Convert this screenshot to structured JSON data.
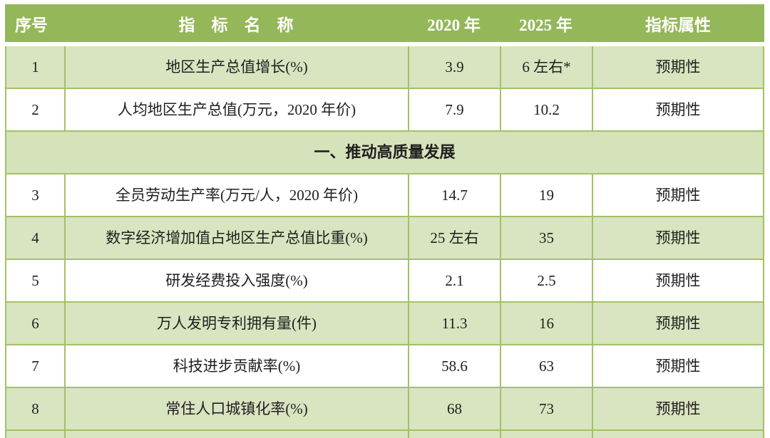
{
  "colors": {
    "header_bg": "#94b75a",
    "row_alt_bg": "#d9e4c0",
    "section_bg": "#d6e2ba",
    "row_bg": "#ffffff",
    "border": "#a3c166",
    "header_text": "#ffffff",
    "body_text": "#1f1f1f"
  },
  "table": {
    "columns": [
      {
        "key": "index",
        "label": "序号"
      },
      {
        "key": "name",
        "label": "指　标　名　称"
      },
      {
        "key": "y2020",
        "label": "2020 年"
      },
      {
        "key": "y2025",
        "label": "2025 年"
      },
      {
        "key": "attribute",
        "label": "指标属性"
      }
    ],
    "rows": [
      {
        "type": "data",
        "index": "1",
        "name": "地区生产总值增长(%)",
        "y2020": "3.9",
        "y2025": "6 左右*",
        "attribute": "预期性"
      },
      {
        "type": "data",
        "index": "2",
        "name": "人均地区生产总值(万元，2020 年价)",
        "y2020": "7.9",
        "y2025": "10.2",
        "attribute": "预期性"
      },
      {
        "type": "section",
        "title": "一、推动高质量发展"
      },
      {
        "type": "data",
        "index": "3",
        "name": "全员劳动生产率(万元/人，2020 年价)",
        "y2020": "14.7",
        "y2025": "19",
        "attribute": "预期性"
      },
      {
        "type": "data",
        "index": "4",
        "name": "数字经济增加值占地区生产总值比重(%)",
        "y2020": "25 左右",
        "y2025": "35",
        "attribute": "预期性"
      },
      {
        "type": "data",
        "index": "5",
        "name": "研发经费投入强度(%)",
        "y2020": "2.1",
        "y2025": "2.5",
        "attribute": "预期性"
      },
      {
        "type": "data",
        "index": "6",
        "name": "万人发明专利拥有量(件)",
        "y2020": "11.3",
        "y2025": "16",
        "attribute": "预期性"
      },
      {
        "type": "data",
        "index": "7",
        "name": "科技进步贡献率(%)",
        "y2020": "58.6",
        "y2025": "63",
        "attribute": "预期性"
      },
      {
        "type": "data",
        "index": "8",
        "name": "常住人口城镇化率(%)",
        "y2020": "68",
        "y2025": "73",
        "attribute": "预期性"
      }
    ]
  }
}
